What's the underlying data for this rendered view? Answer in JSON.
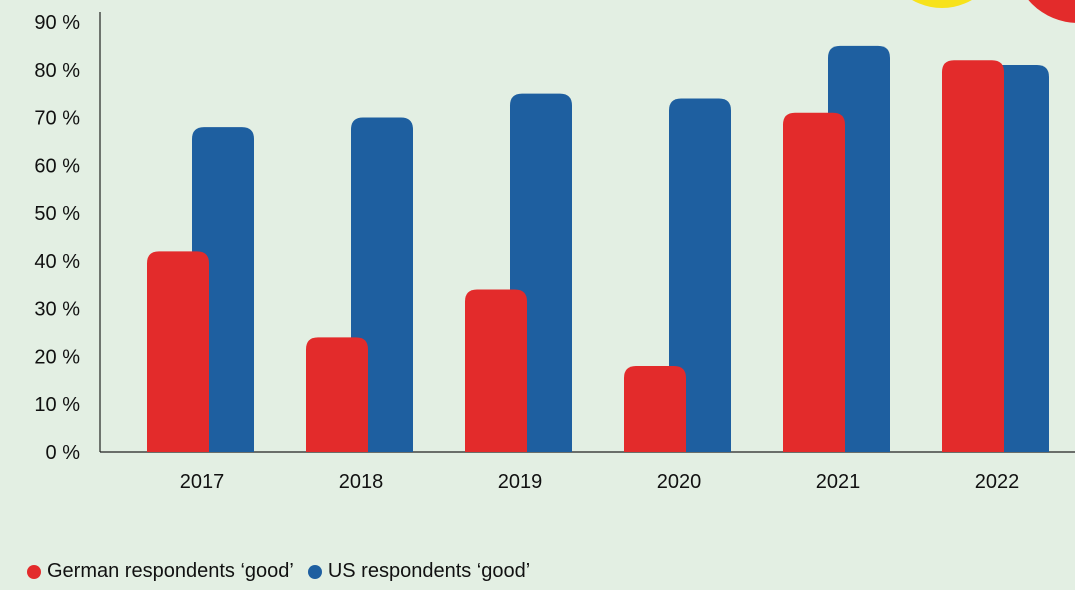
{
  "chart_data": {
    "type": "bar",
    "categories": [
      "2017",
      "2018",
      "2019",
      "2020",
      "2021",
      "2022"
    ],
    "series": [
      {
        "name": "German respondents ‘good’",
        "values": [
          42,
          24,
          34,
          18,
          71,
          82
        ],
        "color": "#e32b2b"
      },
      {
        "name": "US respondents ‘good’",
        "values": [
          68,
          70,
          75,
          74,
          85,
          81
        ],
        "color": "#1e5fa0"
      }
    ],
    "y_ticks": [
      "0 %",
      "10 %",
      "20 %",
      "30 %",
      "40 %",
      "50 %",
      "60 %",
      "70 %",
      "80 %",
      "90 %"
    ],
    "ylim": [
      0,
      90
    ],
    "grid": false,
    "legend_position": "bottom-left",
    "title": "",
    "xlabel": "",
    "ylabel": ""
  },
  "decorations": {
    "colors": {
      "yellow": "#f7e21b",
      "red": "#e32b2b"
    }
  }
}
